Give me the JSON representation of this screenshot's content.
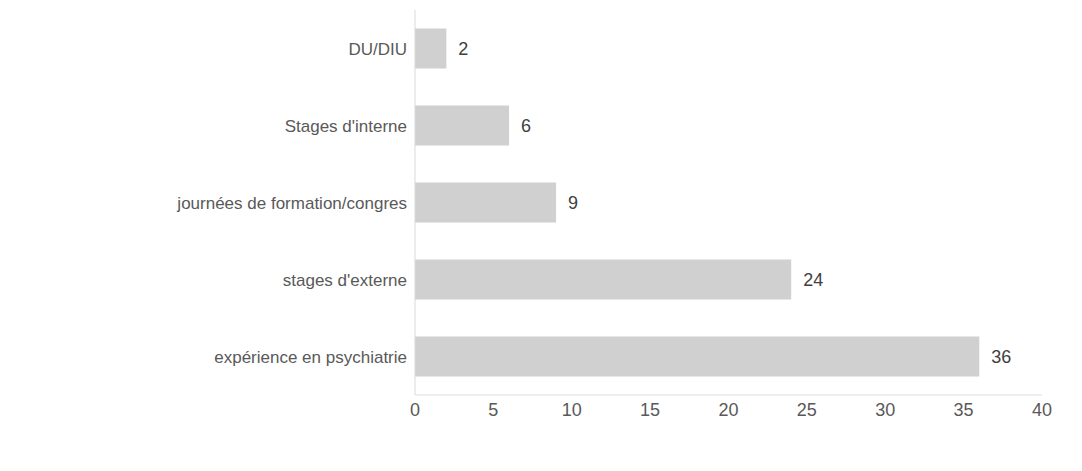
{
  "chart_data": {
    "type": "bar",
    "orientation": "horizontal",
    "categories": [
      "DU/DIU",
      "Stages d'interne",
      "journées de formation/congres",
      "stages d'externe",
      "expérience en psychiatrie"
    ],
    "values": [
      2,
      6,
      9,
      24,
      36
    ],
    "color": "#d0d0d0",
    "xlim": [
      0,
      40
    ],
    "xticks": [
      0,
      5,
      10,
      15,
      20,
      25,
      30,
      35,
      40
    ],
    "data_labels": true,
    "grid": false
  }
}
